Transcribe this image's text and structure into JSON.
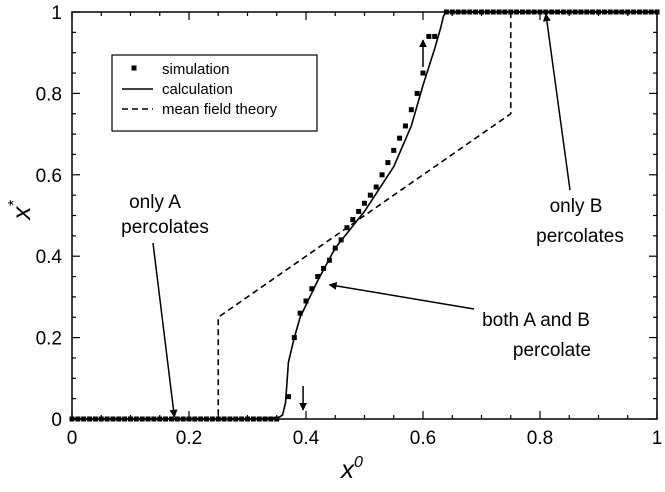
{
  "chart_data": {
    "type": "line",
    "xlabel": "x",
    "xlabel_sup": "0",
    "ylabel": "x",
    "ylabel_sup": "*",
    "xlim": [
      0,
      1
    ],
    "ylim": [
      0,
      1
    ],
    "x_ticks": [
      0,
      0.2,
      0.4,
      0.6,
      0.8,
      1
    ],
    "x_tick_labels": [
      "0",
      "0.2",
      "0.4",
      "0.6",
      "0.8",
      "1"
    ],
    "y_ticks": [
      0,
      0.2,
      0.4,
      0.6,
      0.8,
      1
    ],
    "y_tick_labels": [
      "0",
      "0.2",
      "0.4",
      "0.6",
      "0.8",
      "1"
    ],
    "grid": false,
    "legend_position": "top-left",
    "series": [
      {
        "name": "simulation",
        "style": "square-markers",
        "color": "#000000",
        "x": [
          0.0,
          0.01,
          0.02,
          0.03,
          0.04,
          0.05,
          0.06,
          0.07,
          0.08,
          0.09,
          0.1,
          0.11,
          0.12,
          0.13,
          0.14,
          0.15,
          0.16,
          0.17,
          0.18,
          0.19,
          0.2,
          0.21,
          0.22,
          0.23,
          0.24,
          0.25,
          0.26,
          0.27,
          0.28,
          0.29,
          0.3,
          0.31,
          0.32,
          0.33,
          0.34,
          0.35,
          0.37,
          0.38,
          0.39,
          0.4,
          0.41,
          0.42,
          0.43,
          0.44,
          0.45,
          0.46,
          0.47,
          0.48,
          0.49,
          0.5,
          0.51,
          0.52,
          0.53,
          0.54,
          0.55,
          0.56,
          0.57,
          0.58,
          0.59,
          0.6,
          0.61,
          0.62,
          0.64,
          0.65,
          0.66,
          0.67,
          0.68,
          0.69,
          0.7,
          0.71,
          0.72,
          0.73,
          0.74,
          0.75,
          0.76,
          0.77,
          0.78,
          0.79,
          0.8,
          0.81,
          0.82,
          0.83,
          0.84,
          0.85,
          0.86,
          0.87,
          0.88,
          0.89,
          0.9,
          0.91,
          0.92,
          0.93,
          0.94,
          0.95,
          0.96,
          0.97,
          0.98,
          0.99,
          1.0
        ],
        "y": [
          0,
          0,
          0,
          0,
          0,
          0,
          0,
          0,
          0,
          0,
          0,
          0,
          0,
          0,
          0,
          0,
          0,
          0,
          0,
          0,
          0,
          0,
          0,
          0,
          0,
          0,
          0,
          0,
          0,
          0,
          0,
          0,
          0,
          0,
          0,
          0,
          0.055,
          0.2,
          0.26,
          0.29,
          0.32,
          0.35,
          0.37,
          0.39,
          0.42,
          0.44,
          0.47,
          0.49,
          0.51,
          0.53,
          0.55,
          0.57,
          0.6,
          0.63,
          0.66,
          0.69,
          0.72,
          0.76,
          0.8,
          0.85,
          0.94,
          0.94,
          1,
          1,
          1,
          1,
          1,
          1,
          1,
          1,
          1,
          1,
          1,
          1,
          1,
          1,
          1,
          1,
          1,
          1,
          1,
          1,
          1,
          1,
          1,
          1,
          1,
          1,
          1,
          1,
          1,
          1,
          1,
          1,
          1,
          1,
          1,
          1,
          1
        ]
      },
      {
        "name": "calculation",
        "style": "solid",
        "color": "#000000",
        "x": [
          0.0,
          0.3,
          0.34,
          0.355,
          0.36,
          0.365,
          0.37,
          0.38,
          0.39,
          0.4,
          0.42,
          0.45,
          0.5,
          0.55,
          0.58,
          0.6,
          0.62,
          0.63,
          0.635,
          0.64,
          1.0
        ],
        "y": [
          0,
          0,
          0.002,
          0.005,
          0.01,
          0.04,
          0.14,
          0.2,
          0.25,
          0.28,
          0.34,
          0.42,
          0.51,
          0.62,
          0.72,
          0.82,
          0.91,
          0.96,
          0.99,
          1,
          1
        ]
      },
      {
        "name": "mean field theory",
        "style": "dashed",
        "color": "#000000",
        "x": [
          0.0,
          0.25,
          0.25,
          0.75,
          0.75,
          1.0
        ],
        "y": [
          0,
          0,
          0.25,
          0.75,
          1,
          1
        ]
      }
    ],
    "annotations": [
      {
        "text_lines": [
          "only A",
          "percolates"
        ],
        "arrow_to": [
          0.175,
          0.005
        ]
      },
      {
        "text_lines": [
          "only B",
          "percolates"
        ],
        "arrow_to": [
          0.81,
          0.995
        ]
      },
      {
        "text_lines": [
          "both A and B",
          "percolate"
        ],
        "arrow_to": [
          0.44,
          0.33
        ]
      }
    ],
    "marker_arrows": [
      {
        "x": 0.395,
        "direction": "down"
      },
      {
        "x": 0.6,
        "direction": "up"
      }
    ]
  }
}
